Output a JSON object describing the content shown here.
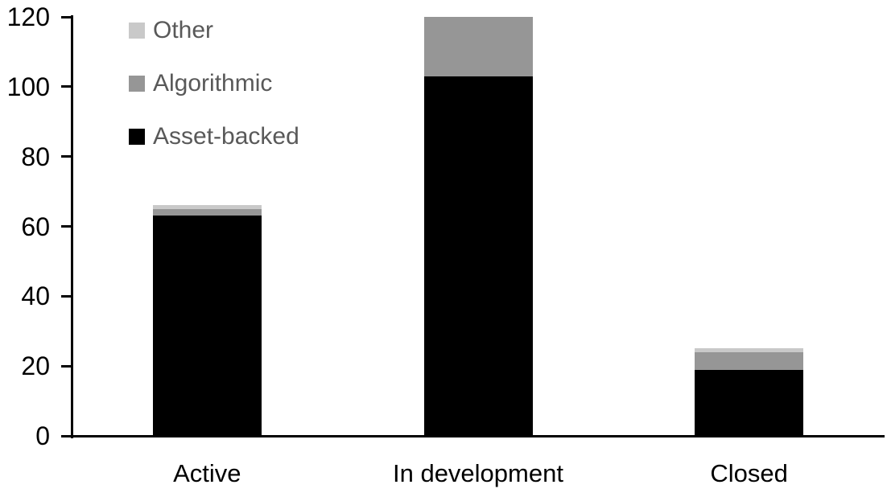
{
  "chart_data": {
    "type": "bar",
    "stacked": true,
    "title": "",
    "xlabel": "",
    "ylabel": "",
    "categories": [
      "Active",
      "In development",
      "Closed"
    ],
    "series": [
      {
        "name": "Asset-backed",
        "color": "#000000",
        "values": [
          63,
          103,
          19
        ]
      },
      {
        "name": "Algorithmic",
        "color": "#969696",
        "values": [
          2,
          17,
          5
        ]
      },
      {
        "name": "Other",
        "color": "#c9c9c9",
        "values": [
          1,
          0,
          1
        ]
      }
    ],
    "ylim": [
      0,
      120
    ],
    "yticks": [
      0,
      20,
      40,
      60,
      80,
      100,
      120
    ],
    "grid": false,
    "legend_position": "top-left",
    "legend_order": [
      "Other",
      "Algorithmic",
      "Asset-backed"
    ],
    "legend_text_color": "#595959",
    "axis_color": "#000000",
    "background_color": "#ffffff"
  }
}
